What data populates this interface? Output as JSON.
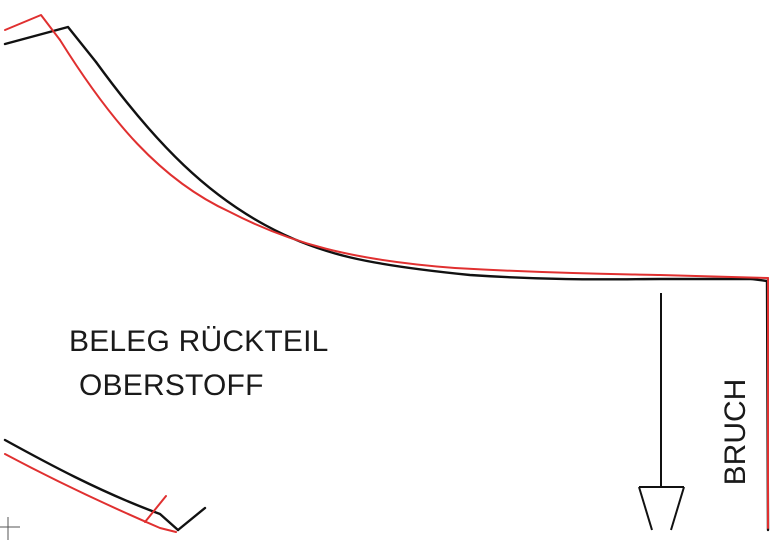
{
  "pattern": {
    "title_line_1": "BELEG RÜCKTEIL",
    "title_line_2": "OBERSTOFF",
    "fold_label": "BRUCH"
  },
  "colors": {
    "pattern_line": "#111111",
    "adjusted_line": "#e03030",
    "background": "#ffffff"
  },
  "icons": {
    "fold_arrow": "arrow-down-icon",
    "registration_mark": "crosshair-icon"
  }
}
